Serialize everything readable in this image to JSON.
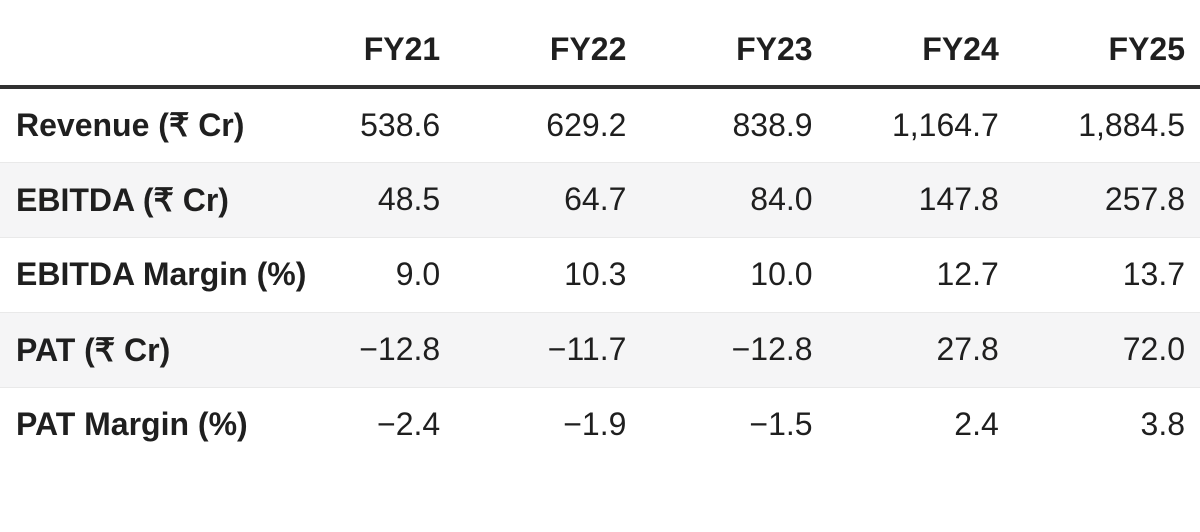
{
  "colors": {
    "text": "#1f1f1f",
    "header_rule": "#313131",
    "row_alt_bg": "#f5f5f6",
    "row_divider": "#e9e9e9",
    "background": "#ffffff"
  },
  "table": {
    "corner_label": "",
    "columns": [
      "FY21",
      "FY22",
      "FY23",
      "FY24",
      "FY25"
    ],
    "rows": [
      {
        "label": "Revenue (₹ Cr)",
        "values": [
          "538.6",
          "629.2",
          "838.9",
          "1,164.7",
          "1,884.5"
        ]
      },
      {
        "label": "EBITDA (₹ Cr)",
        "values": [
          "48.5",
          "64.7",
          "84.0",
          "147.8",
          "257.8"
        ]
      },
      {
        "label": "EBITDA Margin (%)",
        "values": [
          "9.0",
          "10.3",
          "10.0",
          "12.7",
          "13.7"
        ]
      },
      {
        "label": "PAT (₹ Cr)",
        "values": [
          "−12.8",
          "−11.7",
          "−12.8",
          "27.8",
          "72.0"
        ]
      },
      {
        "label": "PAT Margin (%)",
        "values": [
          "−2.4",
          "−1.9",
          "−1.5",
          "2.4",
          "3.8"
        ]
      }
    ]
  },
  "chart_data": {
    "type": "table",
    "columns": [
      "FY21",
      "FY22",
      "FY23",
      "FY24",
      "FY25"
    ],
    "rows": [
      {
        "label": "Revenue (₹ Cr)",
        "values": [
          538.6,
          629.2,
          838.9,
          1164.7,
          1884.5
        ]
      },
      {
        "label": "EBITDA (₹ Cr)",
        "values": [
          48.5,
          64.7,
          84.0,
          147.8,
          257.8
        ]
      },
      {
        "label": "EBITDA Margin (%)",
        "values": [
          9.0,
          10.3,
          10.0,
          12.7,
          13.7
        ]
      },
      {
        "label": "PAT (₹ Cr)",
        "values": [
          -12.8,
          -11.7,
          -12.8,
          27.8,
          72.0
        ]
      },
      {
        "label": "PAT Margin (%)",
        "values": [
          -2.4,
          -1.9,
          -1.5,
          2.4,
          3.8
        ]
      }
    ]
  }
}
